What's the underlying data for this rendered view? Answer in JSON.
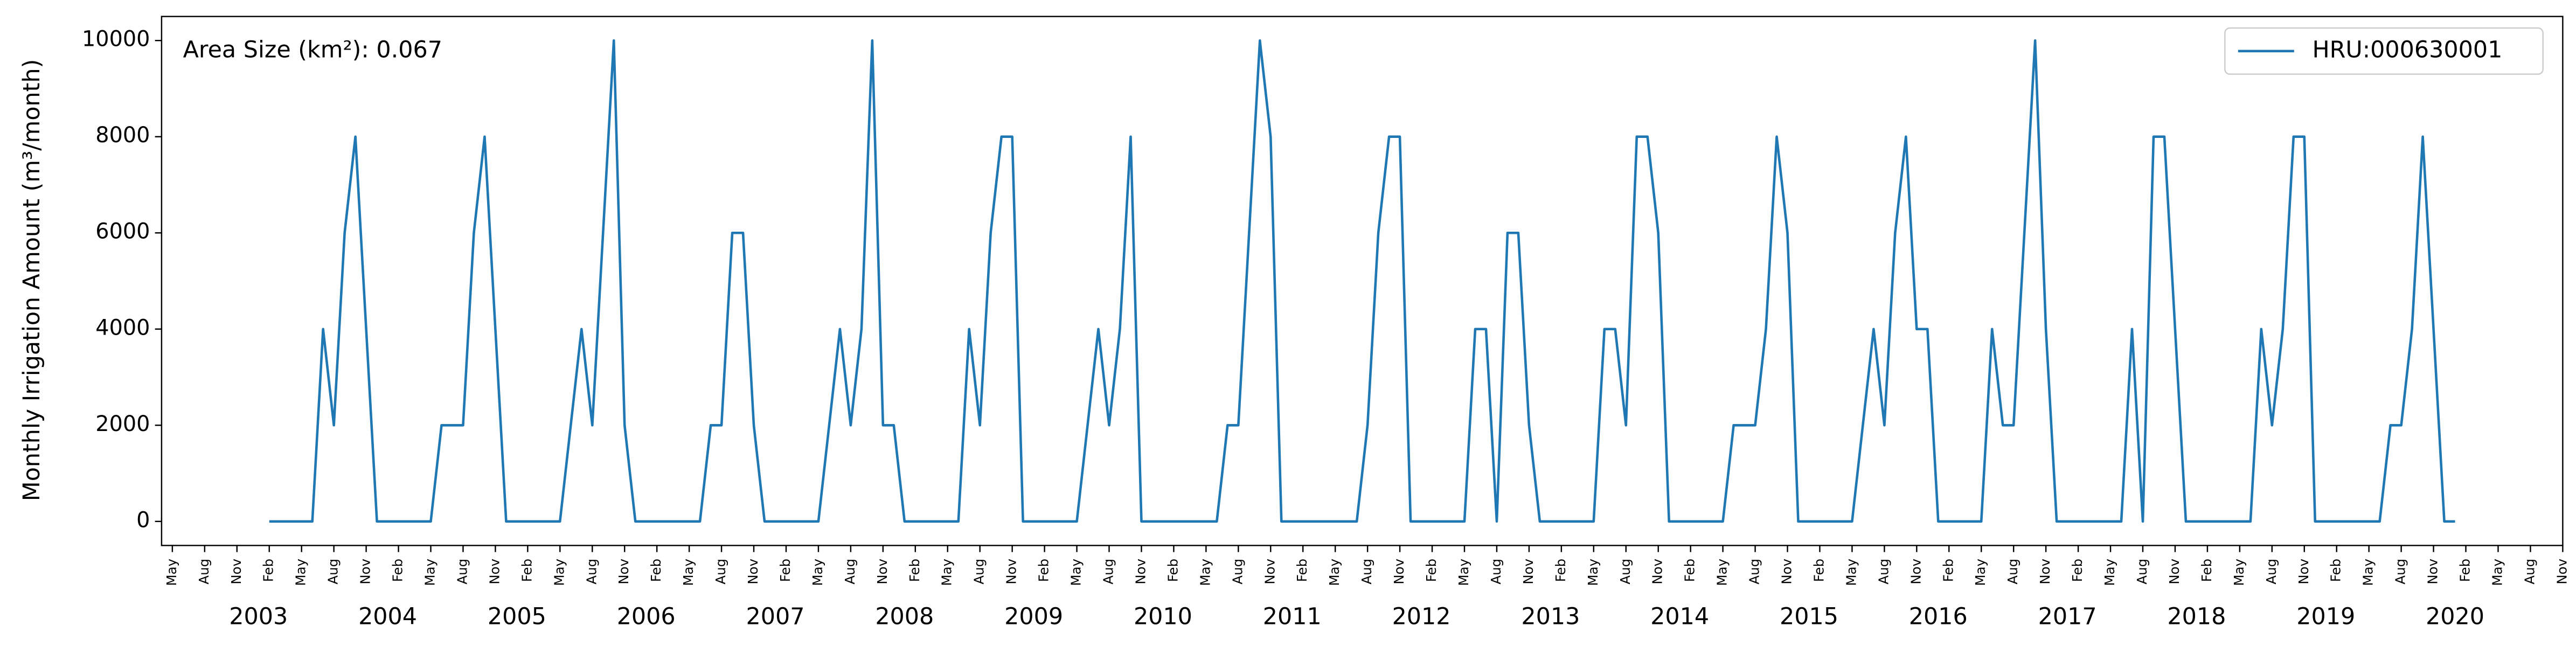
{
  "chart_data": {
    "type": "line",
    "ylabel": "Monthly Irrigation Amount (m³/month)",
    "annotation": "Area Size (km²): 0.067",
    "legend": "upper right",
    "grid": false,
    "x": [
      "2003-01",
      "2003-02",
      "2003-03",
      "2003-04",
      "2003-05",
      "2003-06",
      "2003-07",
      "2003-08",
      "2003-09",
      "2003-10",
      "2003-11",
      "2003-12",
      "2004-01",
      "2004-02",
      "2004-03",
      "2004-04",
      "2004-05",
      "2004-06",
      "2004-07",
      "2004-08",
      "2004-09",
      "2004-10",
      "2004-11",
      "2004-12",
      "2005-01",
      "2005-02",
      "2005-03",
      "2005-04",
      "2005-05",
      "2005-06",
      "2005-07",
      "2005-08",
      "2005-09",
      "2005-10",
      "2005-11",
      "2005-12",
      "2006-01",
      "2006-02",
      "2006-03",
      "2006-04",
      "2006-05",
      "2006-06",
      "2006-07",
      "2006-08",
      "2006-09",
      "2006-10",
      "2006-11",
      "2006-12",
      "2007-01",
      "2007-02",
      "2007-03",
      "2007-04",
      "2007-05",
      "2007-06",
      "2007-07",
      "2007-08",
      "2007-09",
      "2007-10",
      "2007-11",
      "2007-12",
      "2008-01",
      "2008-02",
      "2008-03",
      "2008-04",
      "2008-05",
      "2008-06",
      "2008-07",
      "2008-08",
      "2008-09",
      "2008-10",
      "2008-11",
      "2008-12",
      "2009-01",
      "2009-02",
      "2009-03",
      "2009-04",
      "2009-05",
      "2009-06",
      "2009-07",
      "2009-08",
      "2009-09",
      "2009-10",
      "2009-11",
      "2009-12",
      "2010-01",
      "2010-02",
      "2010-03",
      "2010-04",
      "2010-05",
      "2010-06",
      "2010-07",
      "2010-08",
      "2010-09",
      "2010-10",
      "2010-11",
      "2010-12",
      "2011-01",
      "2011-02",
      "2011-03",
      "2011-04",
      "2011-05",
      "2011-06",
      "2011-07",
      "2011-08",
      "2011-09",
      "2011-10",
      "2011-11",
      "2011-12",
      "2012-01",
      "2012-02",
      "2012-03",
      "2012-04",
      "2012-05",
      "2012-06",
      "2012-07",
      "2012-08",
      "2012-09",
      "2012-10",
      "2012-11",
      "2012-12",
      "2013-01",
      "2013-02",
      "2013-03",
      "2013-04",
      "2013-05",
      "2013-06",
      "2013-07",
      "2013-08",
      "2013-09",
      "2013-10",
      "2013-11",
      "2013-12",
      "2014-01",
      "2014-02",
      "2014-03",
      "2014-04",
      "2014-05",
      "2014-06",
      "2014-07",
      "2014-08",
      "2014-09",
      "2014-10",
      "2014-11",
      "2014-12",
      "2015-01",
      "2015-02",
      "2015-03",
      "2015-04",
      "2015-05",
      "2015-06",
      "2015-07",
      "2015-08",
      "2015-09",
      "2015-10",
      "2015-11",
      "2015-12",
      "2016-01",
      "2016-02",
      "2016-03",
      "2016-04",
      "2016-05",
      "2016-06",
      "2016-07",
      "2016-08",
      "2016-09",
      "2016-10",
      "2016-11",
      "2016-12",
      "2017-01",
      "2017-02",
      "2017-03",
      "2017-04",
      "2017-05",
      "2017-06",
      "2017-07",
      "2017-08",
      "2017-09",
      "2017-10",
      "2017-11",
      "2017-12",
      "2018-01",
      "2018-02",
      "2018-03",
      "2018-04",
      "2018-05",
      "2018-06",
      "2018-07",
      "2018-08",
      "2018-09",
      "2018-10",
      "2018-11",
      "2018-12",
      "2019-01",
      "2019-02",
      "2019-03",
      "2019-04",
      "2019-05",
      "2019-06",
      "2019-07",
      "2019-08",
      "2019-09",
      "2019-10",
      "2019-11",
      "2019-12"
    ],
    "series": [
      {
        "name": "HRU:000630001",
        "color": "#1f77b4",
        "values": [
          0,
          0,
          0,
          0,
          0,
          4000,
          2000,
          6000,
          8000,
          4000,
          0,
          0,
          0,
          0,
          0,
          0,
          2000,
          2000,
          2000,
          6000,
          8000,
          4000,
          0,
          0,
          0,
          0,
          0,
          0,
          2000,
          4000,
          2000,
          6000,
          10000,
          2000,
          0,
          0,
          0,
          0,
          0,
          0,
          0,
          2000,
          2000,
          6000,
          6000,
          2000,
          0,
          0,
          0,
          0,
          0,
          0,
          2000,
          4000,
          2000,
          4000,
          10000,
          2000,
          2000,
          0,
          0,
          0,
          0,
          0,
          0,
          4000,
          2000,
          6000,
          8000,
          8000,
          0,
          0,
          0,
          0,
          0,
          0,
          2000,
          4000,
          2000,
          4000,
          8000,
          0,
          0,
          0,
          0,
          0,
          0,
          0,
          0,
          2000,
          2000,
          6000,
          10000,
          8000,
          0,
          0,
          0,
          0,
          0,
          0,
          0,
          0,
          2000,
          6000,
          8000,
          8000,
          0,
          0,
          0,
          0,
          0,
          0,
          4000,
          4000,
          0,
          6000,
          6000,
          2000,
          0,
          0,
          0,
          0,
          0,
          0,
          4000,
          4000,
          2000,
          8000,
          8000,
          6000,
          0,
          0,
          0,
          0,
          0,
          0,
          2000,
          2000,
          2000,
          4000,
          8000,
          6000,
          0,
          0,
          0,
          0,
          0,
          0,
          2000,
          4000,
          2000,
          6000,
          8000,
          4000,
          4000,
          0,
          0,
          0,
          0,
          0,
          4000,
          2000,
          2000,
          6000,
          10000,
          4000,
          0,
          0,
          0,
          0,
          0,
          0,
          0,
          4000,
          0,
          8000,
          8000,
          4000,
          0,
          0,
          0,
          0,
          0,
          0,
          0,
          4000,
          2000,
          4000,
          8000,
          8000,
          0,
          0,
          0,
          0,
          0,
          0,
          0,
          2000,
          2000,
          4000,
          8000,
          4000,
          0,
          0
        ]
      }
    ],
    "xlim": [
      "2002-04",
      "2020-11"
    ],
    "ylim": [
      -500,
      10500
    ],
    "yticks": [
      0,
      2000,
      4000,
      6000,
      8000,
      10000
    ],
    "xticks": [
      {
        "value": "2002-05",
        "label": "May"
      },
      {
        "value": "2002-08",
        "label": "Aug"
      },
      {
        "value": "2002-11",
        "label": "Nov"
      },
      {
        "value": "2003-02",
        "label": "Feb"
      },
      {
        "value": "2003-05",
        "label": "May"
      },
      {
        "value": "2003-08",
        "label": "Aug"
      },
      {
        "value": "2003-11",
        "label": "Nov"
      },
      {
        "value": "2004-02",
        "label": "Feb"
      },
      {
        "value": "2004-05",
        "label": "May"
      },
      {
        "value": "2004-08",
        "label": "Aug"
      },
      {
        "value": "2004-11",
        "label": "Nov"
      },
      {
        "value": "2005-02",
        "label": "Feb"
      },
      {
        "value": "2005-05",
        "label": "May"
      },
      {
        "value": "2005-08",
        "label": "Aug"
      },
      {
        "value": "2005-11",
        "label": "Nov"
      },
      {
        "value": "2006-02",
        "label": "Feb"
      },
      {
        "value": "2006-05",
        "label": "May"
      },
      {
        "value": "2006-08",
        "label": "Aug"
      },
      {
        "value": "2006-11",
        "label": "Nov"
      },
      {
        "value": "2007-02",
        "label": "Feb"
      },
      {
        "value": "2007-05",
        "label": "May"
      },
      {
        "value": "2007-08",
        "label": "Aug"
      },
      {
        "value": "2007-11",
        "label": "Nov"
      },
      {
        "value": "2008-02",
        "label": "Feb"
      },
      {
        "value": "2008-05",
        "label": "May"
      },
      {
        "value": "2008-08",
        "label": "Aug"
      },
      {
        "value": "2008-11",
        "label": "Nov"
      },
      {
        "value": "2009-02",
        "label": "Feb"
      },
      {
        "value": "2009-05",
        "label": "May"
      },
      {
        "value": "2009-08",
        "label": "Aug"
      },
      {
        "value": "2009-11",
        "label": "Nov"
      },
      {
        "value": "2010-02",
        "label": "Feb"
      },
      {
        "value": "2010-05",
        "label": "May"
      },
      {
        "value": "2010-08",
        "label": "Aug"
      },
      {
        "value": "2010-11",
        "label": "Nov"
      },
      {
        "value": "2011-02",
        "label": "Feb"
      },
      {
        "value": "2011-05",
        "label": "May"
      },
      {
        "value": "2011-08",
        "label": "Aug"
      },
      {
        "value": "2011-11",
        "label": "Nov"
      },
      {
        "value": "2012-02",
        "label": "Feb"
      },
      {
        "value": "2012-05",
        "label": "May"
      },
      {
        "value": "2012-08",
        "label": "Aug"
      },
      {
        "value": "2012-11",
        "label": "Nov"
      },
      {
        "value": "2013-02",
        "label": "Feb"
      },
      {
        "value": "2013-05",
        "label": "May"
      },
      {
        "value": "2013-08",
        "label": "Aug"
      },
      {
        "value": "2013-11",
        "label": "Nov"
      },
      {
        "value": "2014-02",
        "label": "Feb"
      },
      {
        "value": "2014-05",
        "label": "May"
      },
      {
        "value": "2014-08",
        "label": "Aug"
      },
      {
        "value": "2014-11",
        "label": "Nov"
      },
      {
        "value": "2015-02",
        "label": "Feb"
      },
      {
        "value": "2015-05",
        "label": "May"
      },
      {
        "value": "2015-08",
        "label": "Aug"
      },
      {
        "value": "2015-11",
        "label": "Nov"
      },
      {
        "value": "2016-02",
        "label": "Feb"
      },
      {
        "value": "2016-05",
        "label": "May"
      },
      {
        "value": "2016-08",
        "label": "Aug"
      },
      {
        "value": "2016-11",
        "label": "Nov"
      },
      {
        "value": "2017-02",
        "label": "Feb"
      },
      {
        "value": "2017-05",
        "label": "May"
      },
      {
        "value": "2017-08",
        "label": "Aug"
      },
      {
        "value": "2017-11",
        "label": "Nov"
      },
      {
        "value": "2018-02",
        "label": "Feb"
      },
      {
        "value": "2018-05",
        "label": "May"
      },
      {
        "value": "2018-08",
        "label": "Aug"
      },
      {
        "value": "2018-11",
        "label": "Nov"
      },
      {
        "value": "2019-02",
        "label": "Feb"
      },
      {
        "value": "2019-05",
        "label": "May"
      },
      {
        "value": "2019-08",
        "label": "Aug"
      },
      {
        "value": "2019-11",
        "label": "Nov"
      },
      {
        "value": "2020-02",
        "label": "Feb"
      },
      {
        "value": "2020-05",
        "label": "May"
      },
      {
        "value": "2020-08",
        "label": "Aug"
      },
      {
        "value": "2020-11",
        "label": "Nov"
      }
    ],
    "year_labels": [
      "2003",
      "2004",
      "2005",
      "2006",
      "2007",
      "2008",
      "2009",
      "2010",
      "2011",
      "2012",
      "2013",
      "2014",
      "2015",
      "2016",
      "2017",
      "2018",
      "2019",
      "2020"
    ]
  }
}
